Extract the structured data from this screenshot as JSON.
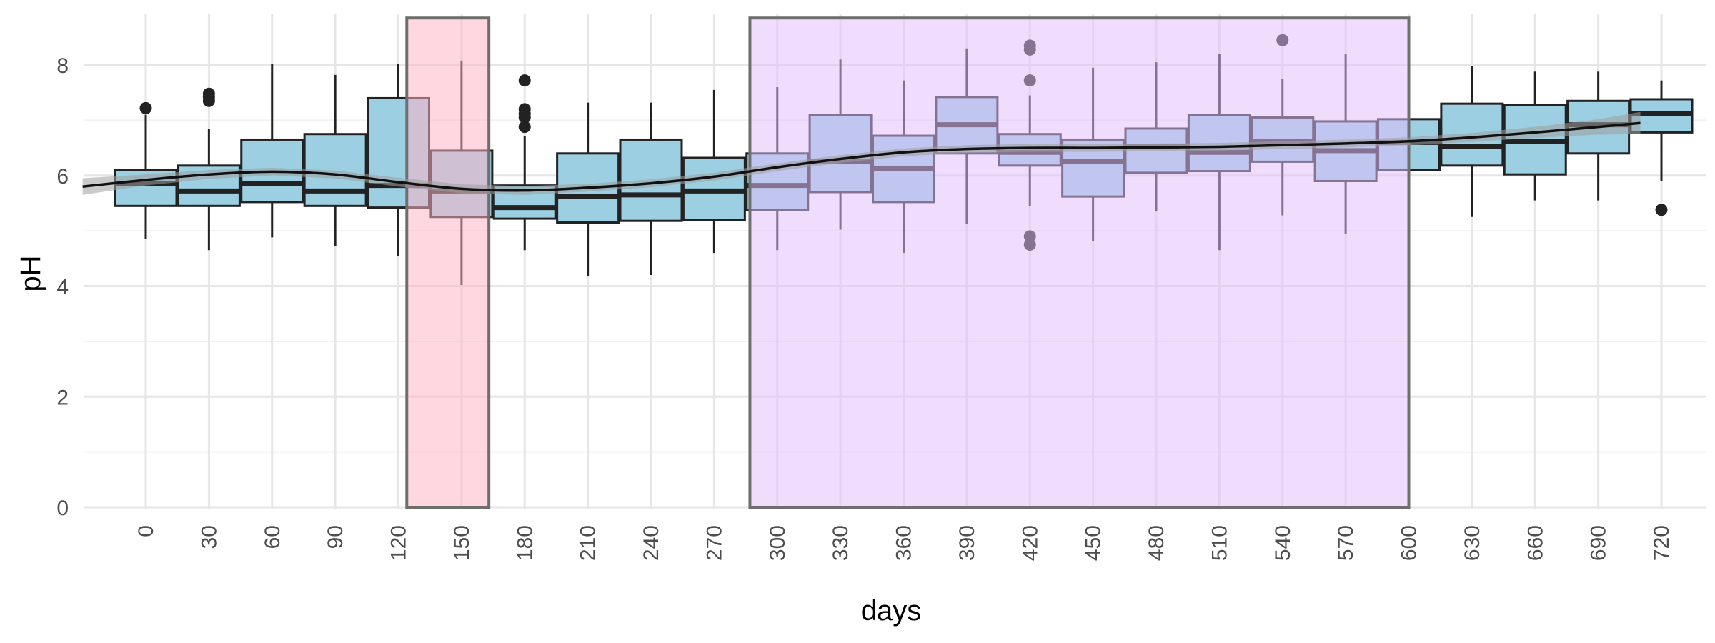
{
  "chart_data": {
    "type": "box",
    "xlabel": "days",
    "ylabel": "pH",
    "ylim": [
      0,
      8.8
    ],
    "y_ticks": [
      0,
      2,
      4,
      6,
      8
    ],
    "grid": true,
    "theme": "minimal",
    "colors": {
      "box_fill": "#9ccfe2",
      "box_stroke": "#222222",
      "highlight_pink": "#ffb3c6",
      "highlight_purple": "#e3bdfc",
      "highlight_border": "#6e6e6e",
      "smooth_line": "#111111",
      "smooth_band": "#9e9e9e"
    },
    "highlight_regions": [
      {
        "x_from": 124,
        "x_to": 163,
        "y_from": 0,
        "y_to": 8.85,
        "color": "pink"
      },
      {
        "x_from": 287,
        "x_to": 600,
        "y_from": 0,
        "y_to": 8.85,
        "color": "purple"
      }
    ],
    "boxes": [
      {
        "x": 0,
        "min": 4.85,
        "q1": 5.45,
        "median": 5.85,
        "q3": 6.1,
        "max": 7.1,
        "outliers": [
          7.22
        ]
      },
      {
        "x": 30,
        "min": 4.65,
        "q1": 5.45,
        "median": 5.72,
        "q3": 6.18,
        "max": 6.85,
        "outliers": [
          7.35,
          7.42,
          7.48
        ]
      },
      {
        "x": 60,
        "min": 4.88,
        "q1": 5.52,
        "median": 5.85,
        "q3": 6.65,
        "max": 8.02,
        "outliers": []
      },
      {
        "x": 90,
        "min": 4.72,
        "q1": 5.45,
        "median": 5.72,
        "q3": 6.75,
        "max": 7.82,
        "outliers": []
      },
      {
        "x": 120,
        "min": 4.55,
        "q1": 5.42,
        "median": 5.82,
        "q3": 7.4,
        "max": 8.02,
        "outliers": []
      },
      {
        "x": 150,
        "min": 4.02,
        "q1": 5.25,
        "median": 5.72,
        "q3": 6.45,
        "max": 8.08,
        "outliers": []
      },
      {
        "x": 180,
        "min": 4.65,
        "q1": 5.22,
        "median": 5.42,
        "q3": 5.82,
        "max": 6.72,
        "outliers": [
          6.88,
          7.05,
          7.12,
          7.2,
          7.72
        ]
      },
      {
        "x": 210,
        "min": 4.18,
        "q1": 5.15,
        "median": 5.62,
        "q3": 6.4,
        "max": 7.32,
        "outliers": []
      },
      {
        "x": 240,
        "min": 4.2,
        "q1": 5.18,
        "median": 5.65,
        "q3": 6.65,
        "max": 7.32,
        "outliers": []
      },
      {
        "x": 270,
        "min": 4.6,
        "q1": 5.2,
        "median": 5.72,
        "q3": 6.32,
        "max": 7.55,
        "outliers": []
      },
      {
        "x": 300,
        "min": 4.65,
        "q1": 5.38,
        "median": 5.82,
        "q3": 6.4,
        "max": 7.6,
        "outliers": []
      },
      {
        "x": 330,
        "min": 5.02,
        "q1": 5.7,
        "median": 6.25,
        "q3": 7.1,
        "max": 8.1,
        "outliers": []
      },
      {
        "x": 360,
        "min": 4.6,
        "q1": 5.52,
        "median": 6.12,
        "q3": 6.72,
        "max": 7.72,
        "outliers": []
      },
      {
        "x": 390,
        "min": 5.12,
        "q1": 6.4,
        "median": 6.92,
        "q3": 7.42,
        "max": 8.3,
        "outliers": []
      },
      {
        "x": 420,
        "min": 5.45,
        "q1": 6.18,
        "median": 6.42,
        "q3": 6.75,
        "max": 7.45,
        "outliers": [
          4.75,
          4.9,
          7.72,
          8.28,
          8.35
        ]
      },
      {
        "x": 450,
        "min": 4.82,
        "q1": 5.62,
        "median": 6.25,
        "q3": 6.65,
        "max": 7.95,
        "outliers": []
      },
      {
        "x": 480,
        "min": 5.35,
        "q1": 6.05,
        "median": 6.52,
        "q3": 6.85,
        "max": 8.05,
        "outliers": []
      },
      {
        "x": 510,
        "min": 4.65,
        "q1": 6.08,
        "median": 6.42,
        "q3": 7.1,
        "max": 8.2,
        "outliers": []
      },
      {
        "x": 540,
        "min": 5.28,
        "q1": 6.25,
        "median": 6.62,
        "q3": 7.05,
        "max": 7.75,
        "outliers": [
          8.45
        ]
      },
      {
        "x": 570,
        "min": 4.95,
        "q1": 5.9,
        "median": 6.45,
        "q3": 6.98,
        "max": 8.2,
        "outliers": []
      },
      {
        "x": 600,
        "min": 6.08,
        "q1": 6.1,
        "median": 6.6,
        "q3": 7.02,
        "max": 7.02,
        "outliers": []
      },
      {
        "x": 630,
        "min": 5.25,
        "q1": 6.18,
        "median": 6.52,
        "q3": 7.3,
        "max": 7.98,
        "outliers": []
      },
      {
        "x": 660,
        "min": 5.55,
        "q1": 6.02,
        "median": 6.62,
        "q3": 7.28,
        "max": 7.88,
        "outliers": []
      },
      {
        "x": 690,
        "min": 5.55,
        "q1": 6.4,
        "median": 6.92,
        "q3": 7.35,
        "max": 7.88,
        "outliers": []
      },
      {
        "x": 720,
        "min": 5.9,
        "q1": 6.78,
        "median": 7.12,
        "q3": 7.38,
        "max": 7.72,
        "outliers": [
          5.38
        ]
      }
    ],
    "smooth": {
      "x": [
        -30,
        0,
        30,
        60,
        90,
        120,
        150,
        180,
        210,
        240,
        270,
        300,
        330,
        360,
        390,
        420,
        450,
        480,
        510,
        540,
        570,
        600,
        630,
        660,
        690,
        710
      ],
      "y": [
        5.8,
        5.92,
        6.02,
        6.07,
        6.02,
        5.88,
        5.76,
        5.73,
        5.78,
        5.86,
        5.98,
        6.15,
        6.3,
        6.42,
        6.48,
        6.5,
        6.5,
        6.51,
        6.52,
        6.55,
        6.58,
        6.62,
        6.69,
        6.78,
        6.88,
        6.95
      ],
      "band_x": [
        -30,
        0,
        30,
        60,
        90,
        120,
        150,
        180,
        210,
        240,
        270,
        300,
        330,
        360,
        390,
        420,
        450,
        480,
        510,
        540,
        570,
        600,
        630,
        660,
        690,
        710
      ],
      "band_upper": [
        5.95,
        6.02,
        6.1,
        6.14,
        6.09,
        5.96,
        5.84,
        5.81,
        5.85,
        5.93,
        6.05,
        6.22,
        6.37,
        6.49,
        6.55,
        6.57,
        6.57,
        6.58,
        6.59,
        6.62,
        6.65,
        6.69,
        6.77,
        6.88,
        7.02,
        7.15
      ],
      "band_lower": [
        5.65,
        5.82,
        5.94,
        6.0,
        5.95,
        5.8,
        5.68,
        5.65,
        5.71,
        5.79,
        5.91,
        6.08,
        6.23,
        6.35,
        6.41,
        6.43,
        6.43,
        6.44,
        6.45,
        6.48,
        6.51,
        6.55,
        6.61,
        6.68,
        6.74,
        6.75
      ]
    }
  }
}
